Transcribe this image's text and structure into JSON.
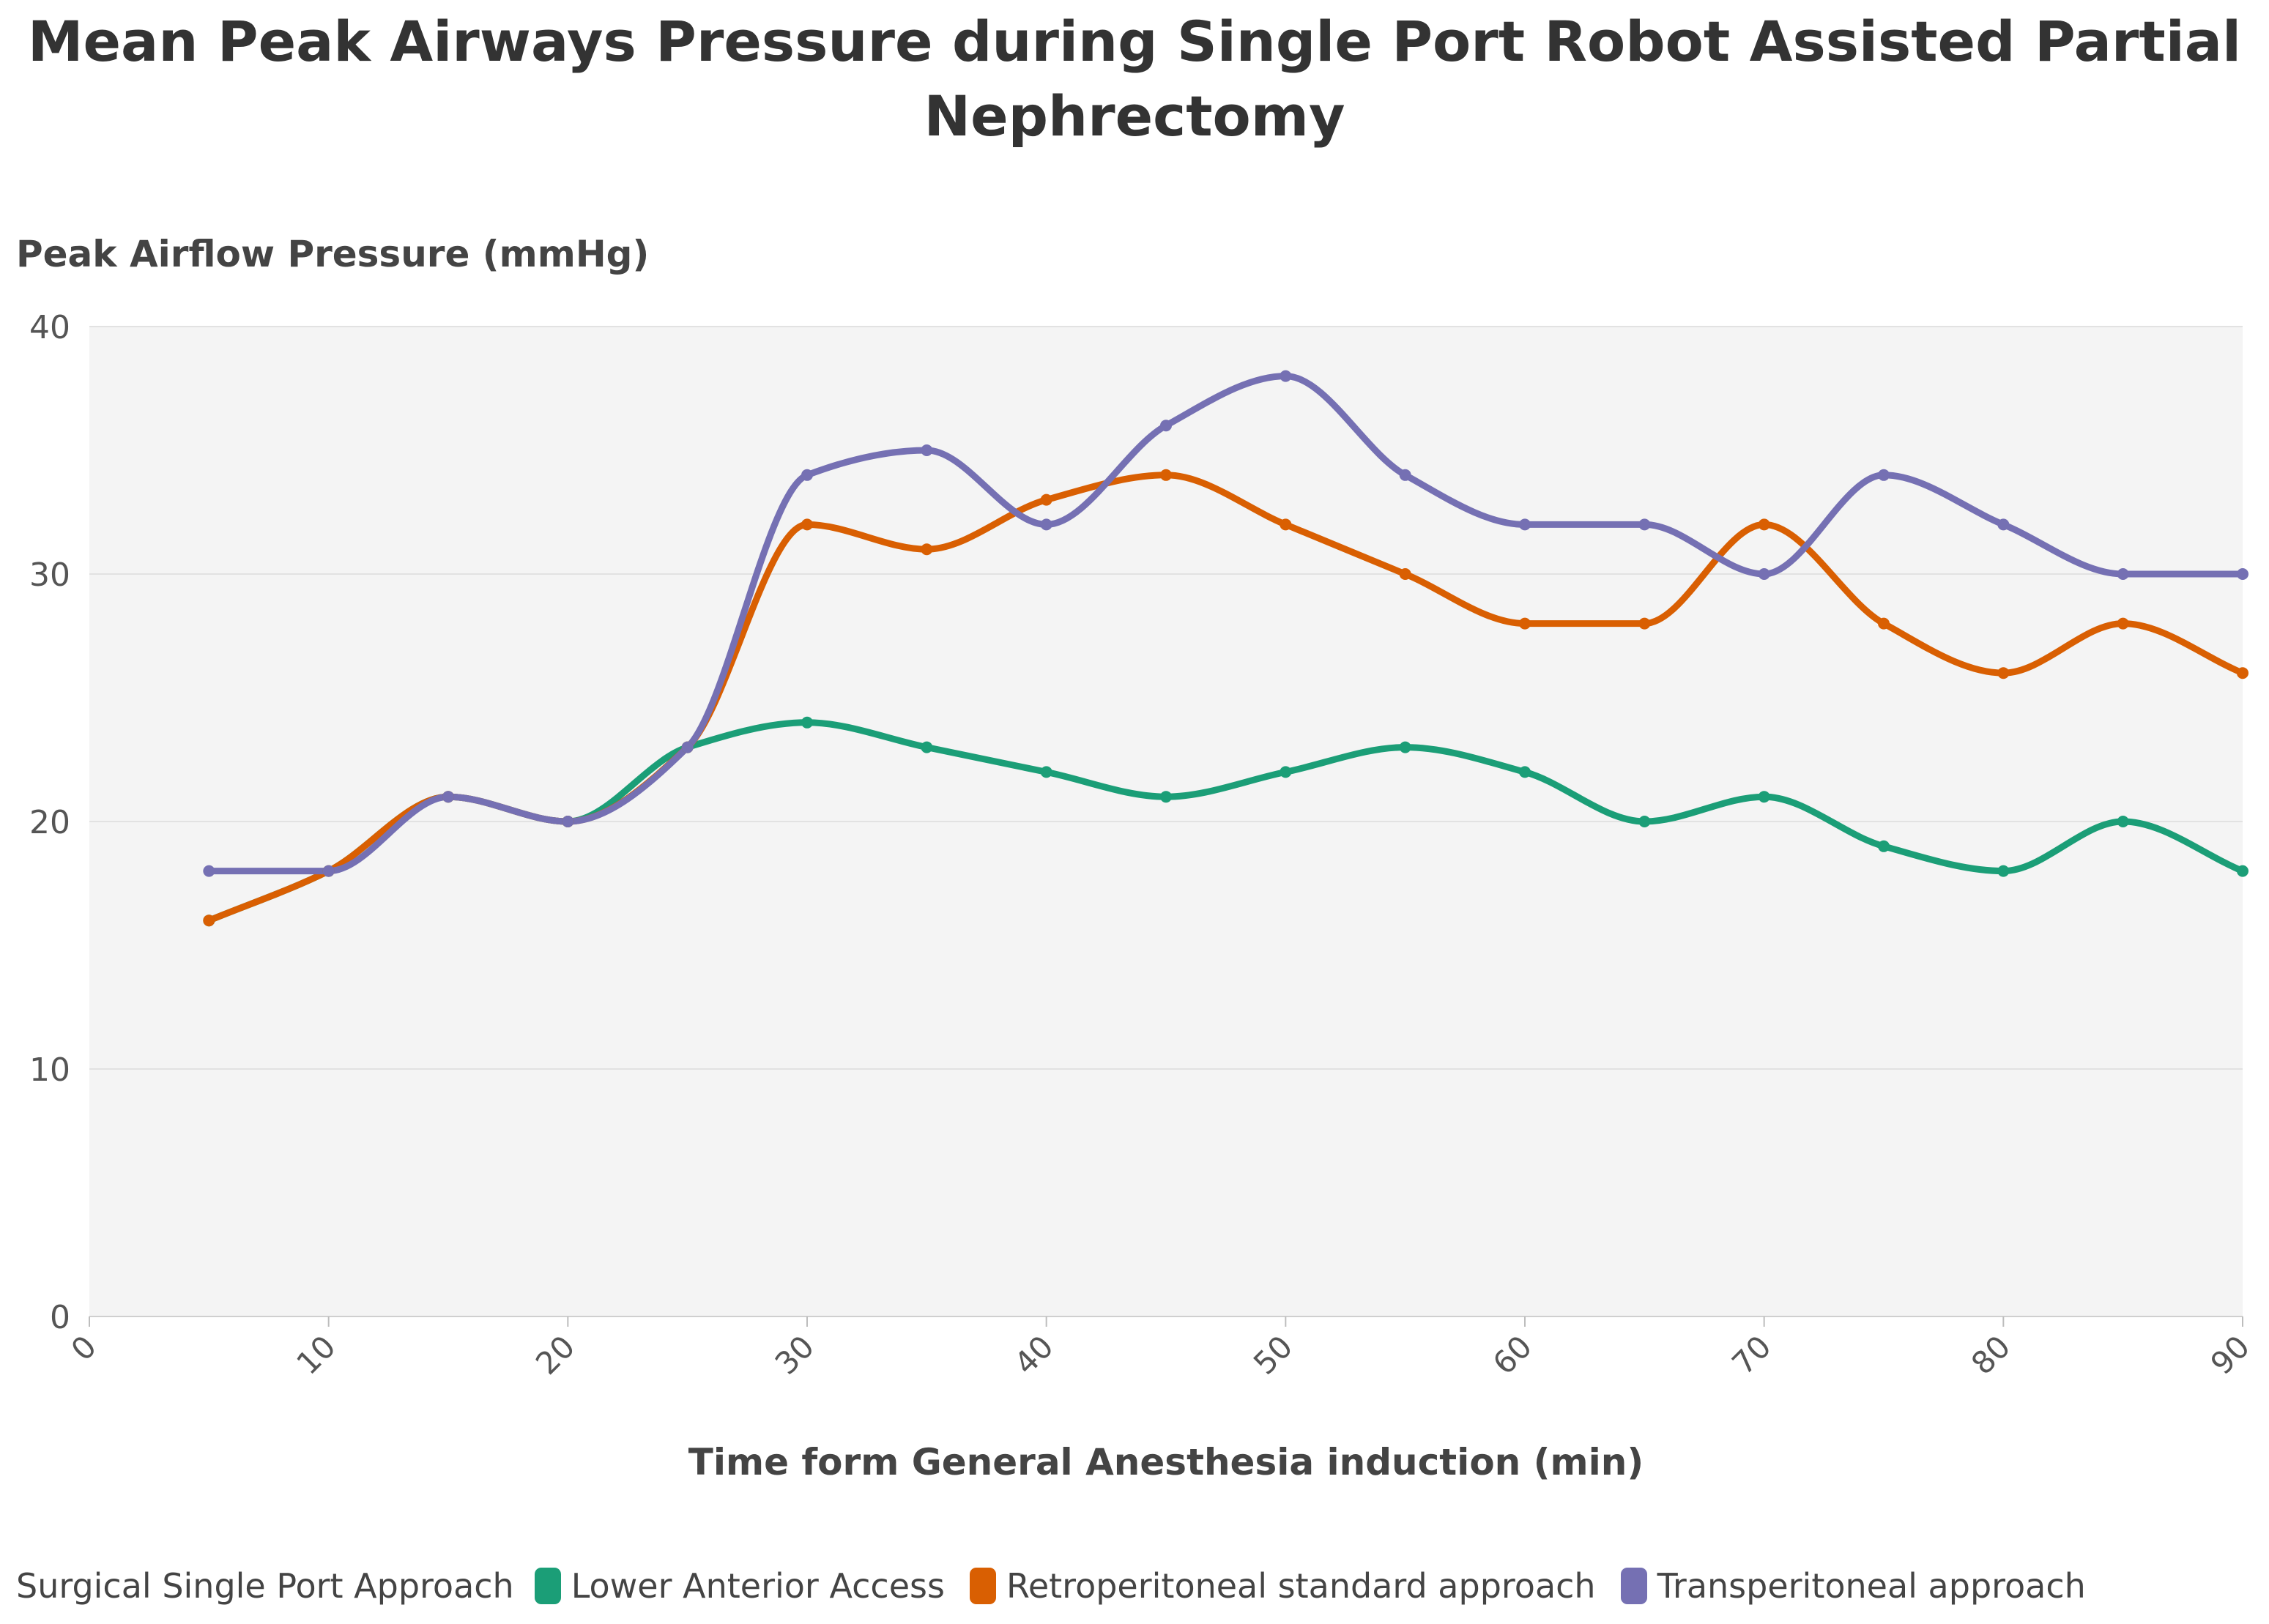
{
  "chart_data": {
    "type": "line",
    "title_lines": [
      "Mean Peak Airways Pressure during Single Port Robot Assisted Partial",
      "Nephrectomy"
    ],
    "xlabel": "Time form General Anesthesia induction (min)",
    "ylabel": "Peak Airflow Pressure (mmHg)",
    "xlim": [
      0,
      90
    ],
    "ylim": [
      0,
      40
    ],
    "x_ticks": [
      "0",
      "10",
      "20",
      "30",
      "40",
      "50",
      "60",
      "70",
      "80",
      "90"
    ],
    "y_ticks": [
      "0",
      "10",
      "20",
      "30",
      "40"
    ],
    "grid": true,
    "background": "#f4f4f4",
    "legend_position": "bottom-left",
    "legend_title": "Surgical Single Port Approach",
    "x": [
      5,
      10,
      15,
      20,
      25,
      30,
      35,
      40,
      45,
      50,
      55,
      60,
      65,
      70,
      75,
      80,
      85,
      90
    ],
    "series": [
      {
        "name": "Lower Anterior Access",
        "color": "#1b9e77",
        "values": [
          16,
          18,
          21,
          20,
          23,
          24,
          23,
          22,
          21,
          22,
          23,
          22,
          20,
          21,
          19,
          18,
          20,
          18
        ]
      },
      {
        "name": "Retroperitoneal standard approach",
        "color": "#d95f02",
        "values": [
          16,
          18,
          21,
          20,
          23,
          32,
          31,
          33,
          34,
          32,
          30,
          28,
          28,
          32,
          28,
          26,
          28,
          26
        ]
      },
      {
        "name": "Transperitoneal approach",
        "color": "#7570b3",
        "values": [
          18,
          18,
          21,
          20,
          23,
          34,
          35,
          32,
          36,
          38,
          34,
          32,
          32,
          30,
          34,
          32,
          30,
          30
        ]
      }
    ]
  }
}
